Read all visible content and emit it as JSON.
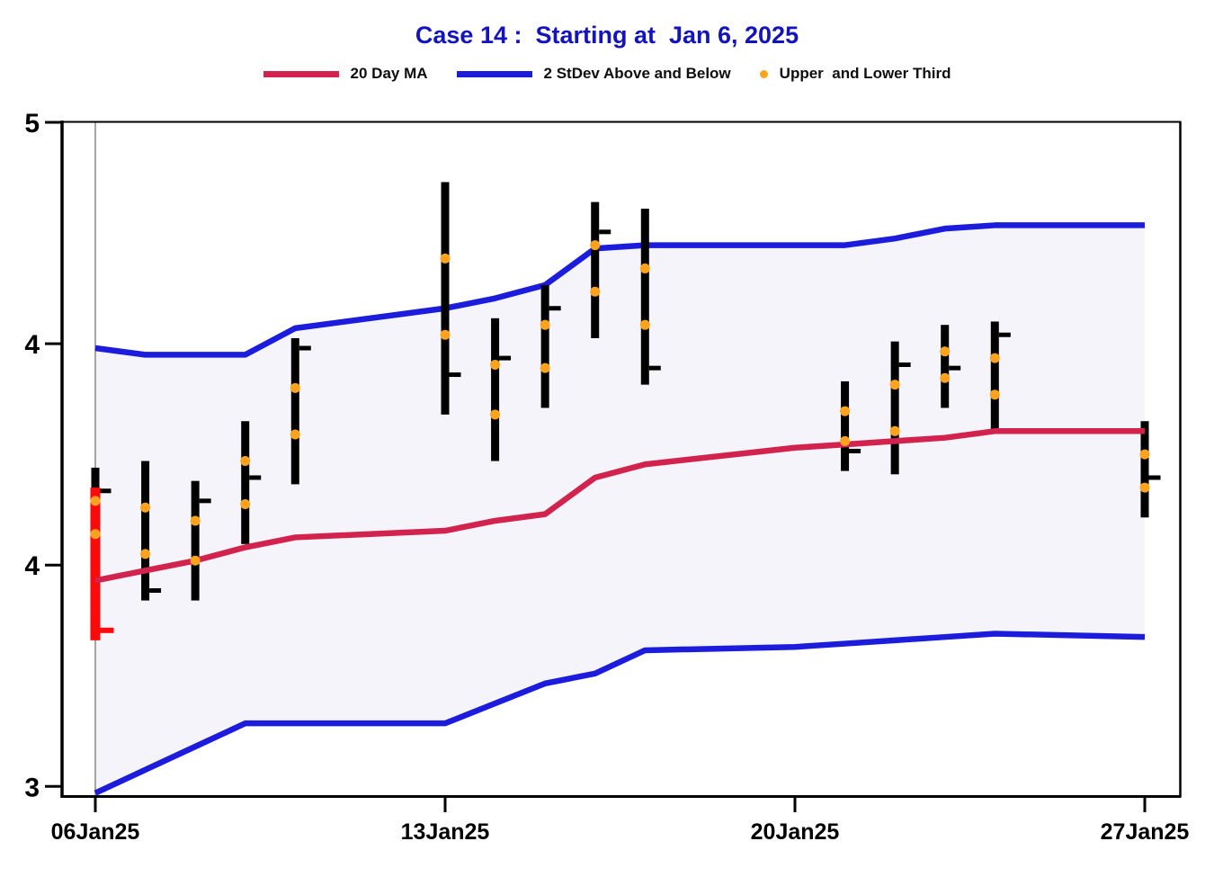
{
  "title": {
    "text": "Case 14 :  Starting at  Jan 6, 2025"
  },
  "palette": {
    "title_blue": "#1414BE",
    "band_blue": "#1C1CDC",
    "ma_crimson": "#D2234E",
    "bar_black": "#000000",
    "start_red": "#FA0A0A",
    "dot_orange": "#FFA21E",
    "band_fill": "#F4F4FA",
    "gridline_gray": "#8F8F8F",
    "axis_black": "#000000"
  },
  "legend": {
    "items": [
      {
        "label": "20 Day MA",
        "swatch": "line",
        "color_key": "ma_crimson"
      },
      {
        "label": "2 StDev Above and Below",
        "swatch": "line",
        "color_key": "band_blue"
      },
      {
        "label": "Upper  and Lower Third",
        "swatch": "dot",
        "color_key": "dot_orange"
      }
    ]
  },
  "axes": {
    "y": {
      "min": 3,
      "max": 5,
      "ticks": [
        {
          "value": 5,
          "label": "5"
        },
        {
          "value": 4.3333,
          "label": "4"
        },
        {
          "value": 3.6667,
          "label": "4"
        },
        {
          "value": 3,
          "label": "3"
        }
      ]
    },
    "x": {
      "ticks": [
        {
          "day_offset": 0,
          "label": "06Jan25"
        },
        {
          "day_offset": 7,
          "label": "13Jan25"
        },
        {
          "day_offset": 14,
          "label": "20Jan25"
        },
        {
          "day_offset": 21,
          "label": "27Jan25"
        }
      ]
    }
  },
  "chart_data": {
    "type": "highlow-bars-with-bands",
    "title": "Case 14 :  Starting at  Jan 6, 2025",
    "ylim": [
      3,
      5
    ],
    "grid": "start-date-reference-line-only",
    "legend_position": "top",
    "dates": [
      "06Jan25",
      "07Jan25",
      "08Jan25",
      "09Jan25",
      "10Jan25",
      "13Jan25",
      "14Jan25",
      "15Jan25",
      "16Jan25",
      "17Jan25",
      "20Jan25",
      "21Jan25",
      "22Jan25",
      "23Jan25",
      "24Jan25",
      "27Jan25"
    ],
    "day_offsets": [
      0,
      1,
      2,
      3,
      4,
      7,
      8,
      9,
      10,
      11,
      14,
      15,
      16,
      17,
      18,
      21
    ],
    "series": [
      {
        "name": "20 Day MA",
        "type": "line",
        "color_key": "ma_crimson",
        "values": [
          3.62,
          3.65,
          3.68,
          3.72,
          3.75,
          3.77,
          3.8,
          3.82,
          3.93,
          3.97,
          4.02,
          4.03,
          4.04,
          4.05,
          4.07,
          4.07
        ]
      },
      {
        "name": "2 StDev Above",
        "type": "line",
        "color_key": "band_blue",
        "values": [
          4.32,
          4.3,
          4.3,
          4.3,
          4.38,
          4.44,
          4.47,
          4.51,
          4.62,
          4.63,
          4.63,
          4.63,
          4.65,
          4.68,
          4.69,
          4.69
        ]
      },
      {
        "name": "2 StDev Below",
        "type": "line",
        "color_key": "band_blue",
        "values": [
          2.98,
          3.05,
          3.12,
          3.19,
          3.19,
          3.19,
          3.25,
          3.31,
          3.34,
          3.41,
          3.42,
          3.43,
          3.44,
          3.45,
          3.46,
          3.45
        ]
      }
    ],
    "bars": [
      {
        "date": "06Jan25",
        "day_offset": 0,
        "high": 3.96,
        "low": 3.66,
        "close": 3.89,
        "upper_third": 3.86,
        "lower_third": 3.76
      },
      {
        "date": "07Jan25",
        "day_offset": 1,
        "high": 3.98,
        "low": 3.56,
        "close": 3.59,
        "upper_third": 3.84,
        "lower_third": 3.7
      },
      {
        "date": "08Jan25",
        "day_offset": 2,
        "high": 3.92,
        "low": 3.56,
        "close": 3.86,
        "upper_third": 3.8,
        "lower_third": 3.68
      },
      {
        "date": "09Jan25",
        "day_offset": 3,
        "high": 4.1,
        "low": 3.73,
        "close": 3.93,
        "upper_third": 3.98,
        "lower_third": 3.85
      },
      {
        "date": "10Jan25",
        "day_offset": 4,
        "high": 4.35,
        "low": 3.91,
        "close": 4.32,
        "upper_third": 4.2,
        "lower_third": 4.06
      },
      {
        "date": "13Jan25",
        "day_offset": 7,
        "high": 4.82,
        "low": 4.12,
        "close": 4.24,
        "upper_third": 4.59,
        "lower_third": 4.36
      },
      {
        "date": "14Jan25",
        "day_offset": 8,
        "high": 4.41,
        "low": 3.98,
        "close": 4.29,
        "upper_third": 4.27,
        "lower_third": 4.12
      },
      {
        "date": "15Jan25",
        "day_offset": 9,
        "high": 4.51,
        "low": 4.14,
        "close": 4.44,
        "upper_third": 4.39,
        "lower_third": 4.26
      },
      {
        "date": "16Jan25",
        "day_offset": 10,
        "high": 4.76,
        "low": 4.35,
        "close": 4.67,
        "upper_third": 4.63,
        "lower_third": 4.49
      },
      {
        "date": "17Jan25",
        "day_offset": 11,
        "high": 4.74,
        "low": 4.21,
        "close": 4.26,
        "upper_third": 4.56,
        "lower_third": 4.39
      },
      {
        "date": "21Jan25",
        "day_offset": 15,
        "high": 4.22,
        "low": 3.95,
        "close": 4.01,
        "upper_third": 4.13,
        "lower_third": 4.04
      },
      {
        "date": "22Jan25",
        "day_offset": 16,
        "high": 4.34,
        "low": 3.94,
        "close": 4.27,
        "upper_third": 4.21,
        "lower_third": 4.07
      },
      {
        "date": "23Jan25",
        "day_offset": 17,
        "high": 4.39,
        "low": 4.14,
        "close": 4.26,
        "upper_third": 4.31,
        "lower_third": 4.23
      },
      {
        "date": "24Jan25",
        "day_offset": 18,
        "high": 4.4,
        "low": 4.07,
        "close": 4.36,
        "upper_third": 4.29,
        "lower_third": 4.18
      },
      {
        "date": "27Jan25",
        "day_offset": 21,
        "high": 4.1,
        "low": 3.81,
        "close": 3.93,
        "upper_third": 4.0,
        "lower_third": 3.9
      }
    ],
    "start_day_overlay_bar": {
      "date": "06Jan25",
      "day_offset": 0,
      "high": 3.9,
      "low": 3.44,
      "close": 3.47,
      "color_key": "start_red"
    }
  }
}
